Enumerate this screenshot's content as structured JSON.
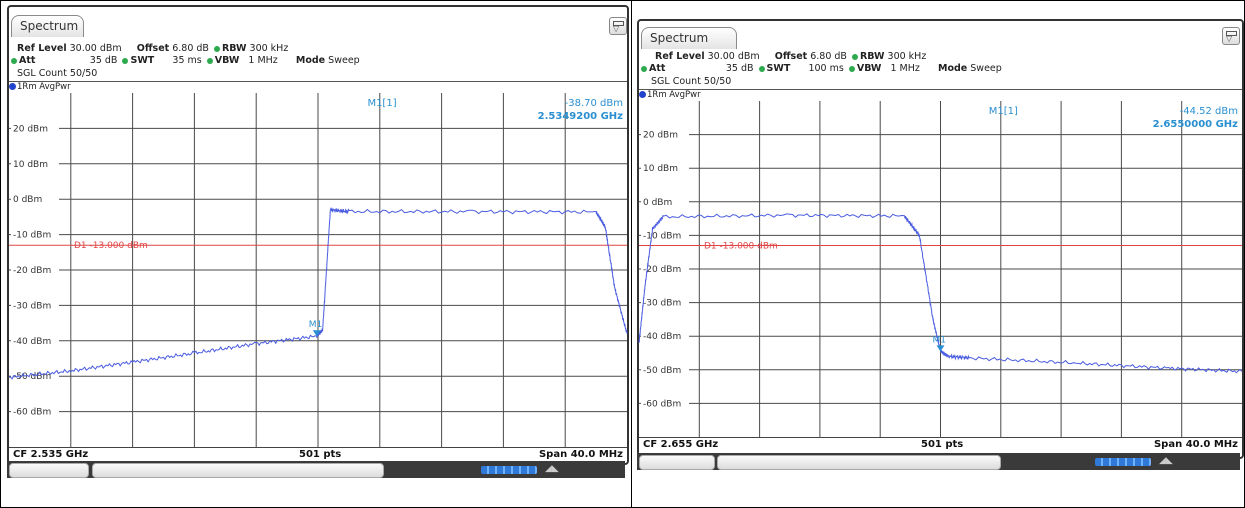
{
  "panels": [
    {
      "tab_label": "Spectrum",
      "ref_level_label": "Ref Level",
      "ref_level": "30.00 dBm",
      "offset_label": "Offset",
      "offset": "6.80 dB",
      "rbw_label": "RBW",
      "rbw": "300 kHz",
      "att_label": "Att",
      "att": "35 dB",
      "swt_label": "SWT",
      "swt": "35 ms",
      "vbw_label": "VBW",
      "vbw": "1 MHz",
      "mode_label": "Mode",
      "mode": "Sweep",
      "sgl_count": "SGL Count 50/50",
      "trace_label": "1Rm AvgPwr",
      "marker_label": "M1[1]",
      "marker_level": "-38.70 dBm",
      "marker_freq": "2.5349200 GHz",
      "marker_tag": "M1",
      "cf": "CF 2.535 GHz",
      "pts": "501 pts",
      "span": "Span 40.0 MHz"
    },
    {
      "tab_label": "Spectrum",
      "ref_level_label": "Ref Level",
      "ref_level": "30.00 dBm",
      "offset_label": "Offset",
      "offset": "6.80 dB",
      "rbw_label": "RBW",
      "rbw": "300 kHz",
      "att_label": "Att",
      "att": "35 dB",
      "swt_label": "SWT",
      "swt": "100 ms",
      "vbw_label": "VBW",
      "vbw": "1 MHz",
      "mode_label": "Mode",
      "mode": "Sweep",
      "sgl_count": "SGL Count 50/50",
      "trace_label": "1Rm AvgPwr",
      "marker_label": "M1[1]",
      "marker_level": "-44.52 dBm",
      "marker_freq": "2.6550000 GHz",
      "marker_tag": "M1",
      "cf": "CF 2.655 GHz",
      "pts": "501 pts",
      "span": "Span 40.0 MHz"
    }
  ],
  "chart_data": [
    {
      "type": "line",
      "y_ticks": [
        "20 dBm",
        "10 dBm",
        "0 dBm",
        "-10 dBm",
        "-20 dBm",
        "-30 dBm",
        "-40 dBm",
        "-50 dBm",
        "-60 dBm"
      ],
      "ylim": [
        -70,
        30
      ],
      "xlim": [
        2515,
        2555
      ],
      "x_unit": "MHz",
      "grid": true,
      "display_line": {
        "label": "D1  -13.000 dBm",
        "value": -13
      },
      "marker": {
        "x": 2534.92,
        "y": -38.7
      },
      "series": [
        {
          "x": [
            2515,
            2519,
            2523,
            2527,
            2531,
            2534.9,
            2535.3,
            2535.8,
            2537,
            2545,
            2553,
            2553.6,
            2554.2,
            2555
          ],
          "y": [
            -50.3,
            -48.5,
            -46,
            -43.5,
            -40.8,
            -38.7,
            -37,
            -3,
            -3.5,
            -3.5,
            -3.6,
            -8,
            -25,
            -38
          ]
        }
      ],
      "line_color": "#4a5ce0",
      "display_line_color": "#e04545"
    },
    {
      "type": "line",
      "y_ticks": [
        "20 dBm",
        "10 dBm",
        "0 dBm",
        "-10 dBm",
        "-20 dBm",
        "-30 dBm",
        "-40 dBm",
        "-50 dBm",
        "-60 dBm"
      ],
      "ylim": [
        -70,
        30
      ],
      "xlim": [
        2635,
        2675
      ],
      "x_unit": "MHz",
      "grid": true,
      "display_line": {
        "label": "D1  -13.000 dBm",
        "value": -13
      },
      "marker": {
        "x": 2655.0,
        "y": -44.52
      },
      "series": [
        {
          "x": [
            2635,
            2635.4,
            2635.9,
            2636.6,
            2645,
            2652.6,
            2653.6,
            2654.5,
            2655,
            2655.5,
            2657,
            2664,
            2670,
            2675
          ],
          "y": [
            -42,
            -25,
            -8,
            -4.5,
            -4,
            -4.2,
            -10,
            -35,
            -44.5,
            -46,
            -46.5,
            -48,
            -49.5,
            -50.5
          ]
        }
      ],
      "line_color": "#4a5ce0",
      "display_line_color": "#e04545"
    }
  ]
}
